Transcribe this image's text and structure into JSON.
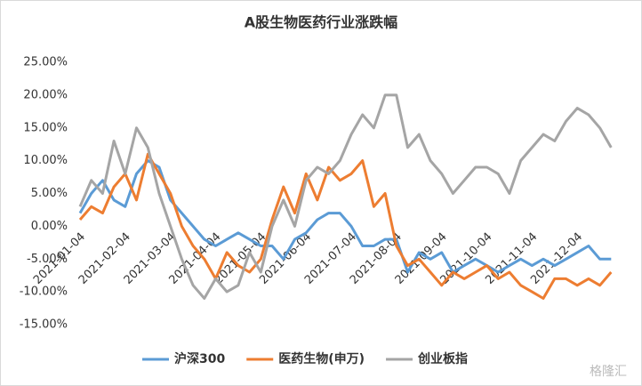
{
  "chart_data": {
    "type": "line",
    "title": "A股生物医药行业涨跌幅",
    "categories": [
      "2021-01-04",
      null,
      null,
      null,
      "2021-02-04",
      null,
      null,
      null,
      "2021-03-04",
      null,
      null,
      null,
      "2021-04-04",
      null,
      null,
      null,
      "2021-05-04",
      null,
      null,
      null,
      "2021-06-04",
      null,
      null,
      null,
      "2021-07-04",
      null,
      null,
      null,
      "2021-08-04",
      null,
      null,
      null,
      "2021-09-04",
      null,
      null,
      null,
      "2021-10-04",
      null,
      null,
      null,
      "2021-11-04",
      null,
      null,
      null,
      "2021-12-04",
      null,
      null,
      null
    ],
    "series": [
      {
        "name": "沪深300",
        "color": "#5b9bd5",
        "values": [
          2,
          5,
          7,
          4,
          3,
          8,
          10,
          9,
          4,
          2,
          0,
          -2,
          -3,
          -2,
          -1,
          -2,
          -3,
          -3,
          -5,
          -2,
          -1,
          1,
          2,
          2,
          0,
          -3,
          -3,
          -2,
          -2,
          -7,
          -4,
          -5,
          -4,
          -7,
          -6,
          -5,
          -6,
          -7,
          -6,
          -5,
          -6,
          -5,
          -6,
          -5,
          -4,
          -3,
          -5,
          -5
        ]
      },
      {
        "name": "医药生物(申万)",
        "color": "#ed7d31",
        "values": [
          1,
          3,
          2,
          6,
          8,
          4,
          11,
          8,
          5,
          0,
          -3,
          -5,
          -8,
          -4,
          -6,
          -7,
          -5,
          1,
          6,
          2,
          8,
          4,
          9,
          7,
          8,
          10,
          3,
          5,
          -3,
          -6,
          -5,
          -7,
          -9,
          -7,
          -8,
          -7,
          -6,
          -8,
          -7,
          -9,
          -10,
          -11,
          -8,
          -8,
          -9,
          -8,
          -9,
          -7
        ]
      },
      {
        "name": "创业板指",
        "color": "#a5a5a5",
        "values": [
          3,
          7,
          5,
          13,
          8,
          15,
          12,
          5,
          0,
          -5,
          -9,
          -11,
          -8,
          -10,
          -9,
          -4,
          -7,
          0,
          4,
          0,
          7,
          9,
          8,
          10,
          14,
          17,
          15,
          20,
          20,
          12,
          14,
          10,
          8,
          5,
          7,
          9,
          9,
          8,
          5,
          10,
          12,
          14,
          13,
          16,
          18,
          17,
          15,
          12
        ]
      }
    ],
    "ylim": [
      -15,
      25
    ],
    "yticks": [
      {
        "value": -15,
        "label": "-15.00%"
      },
      {
        "value": -10,
        "label": "-10.00%"
      },
      {
        "value": -5,
        "label": "-5.00%"
      },
      {
        "value": 0,
        "label": "0.00%"
      },
      {
        "value": 5,
        "label": "5.00%"
      },
      {
        "value": 10,
        "label": "10.00%"
      },
      {
        "value": 15,
        "label": "15.00%"
      },
      {
        "value": 20,
        "label": "20.00%"
      },
      {
        "value": 25,
        "label": "25.00%"
      }
    ],
    "grid": false,
    "legend": "bottom",
    "watermark": "格隆汇"
  }
}
